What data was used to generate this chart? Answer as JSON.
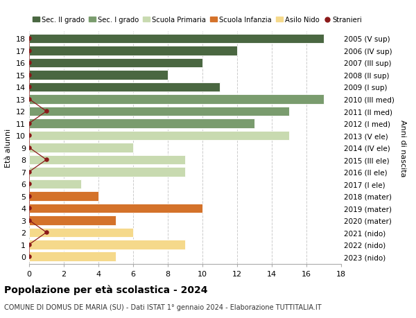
{
  "ages": [
    18,
    17,
    16,
    15,
    14,
    13,
    12,
    11,
    10,
    9,
    8,
    7,
    6,
    5,
    4,
    3,
    2,
    1,
    0
  ],
  "years": [
    "2005 (V sup)",
    "2006 (IV sup)",
    "2007 (III sup)",
    "2008 (II sup)",
    "2009 (I sup)",
    "2010 (III med)",
    "2011 (II med)",
    "2012 (I med)",
    "2013 (V ele)",
    "2014 (IV ele)",
    "2015 (III ele)",
    "2016 (II ele)",
    "2017 (I ele)",
    "2018 (mater)",
    "2019 (mater)",
    "2020 (mater)",
    "2021 (nido)",
    "2022 (nido)",
    "2023 (nido)"
  ],
  "values": [
    17,
    12,
    10,
    8,
    11,
    17,
    15,
    13,
    15,
    6,
    9,
    9,
    3,
    4,
    10,
    5,
    6,
    9,
    5
  ],
  "stranieri_vals": [
    0,
    0,
    0,
    0,
    0,
    0,
    1,
    0,
    0,
    0,
    1,
    0,
    0,
    0,
    0,
    0,
    1,
    0,
    0
  ],
  "categories": {
    "sec2": [
      18,
      17,
      16,
      15,
      14
    ],
    "sec1": [
      13,
      12,
      11
    ],
    "primaria": [
      10,
      9,
      8,
      7,
      6
    ],
    "infanzia": [
      5,
      4,
      3
    ],
    "nido": [
      2,
      1,
      0
    ]
  },
  "colors": {
    "sec2": "#4a6741",
    "sec1": "#7a9c6e",
    "primaria": "#c8dab0",
    "infanzia": "#d4722a",
    "nido": "#f5d98b"
  },
  "stranieri_color": "#8b1a1a",
  "legend_labels": [
    "Sec. II grado",
    "Sec. I grado",
    "Scuola Primaria",
    "Scuola Infanzia",
    "Asilo Nido",
    "Stranieri"
  ],
  "ylabel_label": "Età alunni",
  "right_ylabel": "Anni di nascita",
  "title": "Popolazione per età scolastica - 2024",
  "subtitle": "COMUNE DI DOMUS DE MARIA (SU) - Dati ISTAT 1° gennaio 2024 - Elaborazione TUTTITALIA.IT",
  "xlim": [
    0,
    18
  ],
  "grid_color": "#cccccc",
  "bg_color": "#ffffff"
}
